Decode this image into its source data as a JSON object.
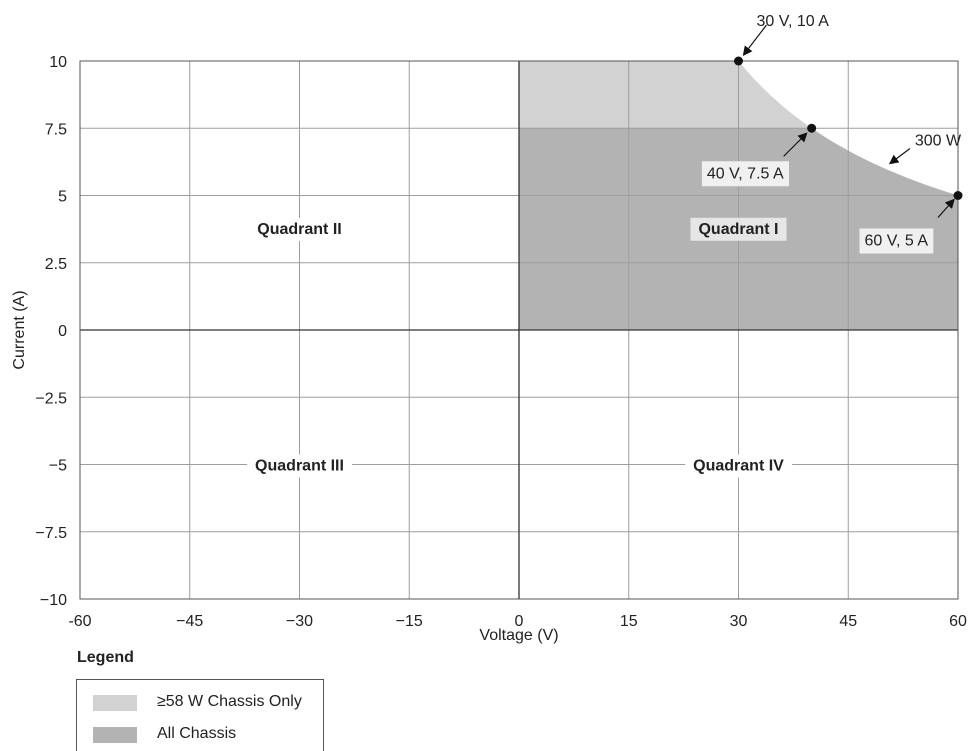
{
  "chart_data": {
    "type": "area",
    "xlabel": "Voltage (V)",
    "ylabel": "Current (A)",
    "xlim": [
      -60,
      60
    ],
    "ylim": [
      -10,
      10
    ],
    "x_ticks": [
      -60,
      -45,
      -30,
      -15,
      0,
      15,
      30,
      45,
      60
    ],
    "x_tick_labels": [
      "-60",
      "−45",
      "−30",
      "−15",
      "0",
      "15",
      "30",
      "45",
      "60"
    ],
    "y_ticks": [
      10,
      7.5,
      5,
      2.5,
      0,
      -2.5,
      -5,
      -7.5,
      -10
    ],
    "y_tick_labels": [
      "10",
      "7.5",
      "5",
      "2.5",
      "0",
      "−2.5",
      "−5",
      "−7.5",
      "−10"
    ],
    "grid": true,
    "regions": [
      {
        "name": "≥58 W Chassis Only",
        "color": "#d2d2d2",
        "boundary": [
          [
            0,
            0
          ],
          [
            0,
            10
          ],
          [
            30,
            10
          ],
          [
            40,
            7.5
          ],
          [
            60,
            5
          ],
          [
            60,
            0
          ]
        ],
        "curve": "300 W constant power"
      },
      {
        "name": "All Chassis",
        "color": "#b3b3b3",
        "boundary": [
          [
            0,
            0
          ],
          [
            0,
            7.5
          ],
          [
            40,
            7.5
          ],
          [
            60,
            5
          ],
          [
            60,
            0
          ]
        ],
        "curve": "300 W constant power"
      }
    ],
    "points": [
      {
        "x": 30,
        "y": 10,
        "label": "30 V, 10 A"
      },
      {
        "x": 40,
        "y": 7.5,
        "label": "40 V, 7.5 A"
      },
      {
        "x": 60,
        "y": 5,
        "label": "60 V, 5 A"
      }
    ],
    "curve_label": "300 W",
    "quadrant_labels": [
      {
        "text": "Quadrant I",
        "x": 30,
        "y": 3.8
      },
      {
        "text": "Quadrant II",
        "x": -30,
        "y": 3.8
      },
      {
        "text": "Quadrant III",
        "x": -30,
        "y": -5
      },
      {
        "text": "Quadrant IV",
        "x": 30,
        "y": -5
      }
    ],
    "legend": {
      "title": "Legend",
      "position": "bottom-left",
      "entries": [
        {
          "label": "≥58 W Chassis Only",
          "color": "#d2d2d2"
        },
        {
          "label": "All Chassis",
          "color": "#b3b3b3"
        }
      ]
    }
  }
}
